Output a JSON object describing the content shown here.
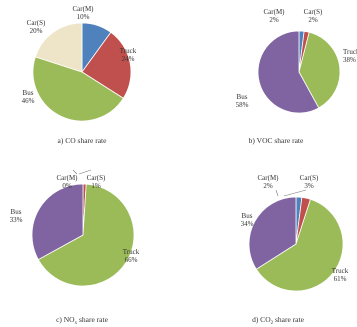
{
  "colors": {
    "Car(M)": "#4f81bd",
    "Car(S)": "#f4a033",
    "Truck": "#c0504d",
    "Bus": "#9bbb59"
  },
  "chart_data": [
    {
      "type": "pie",
      "caption": "a) CO share rate",
      "slices": [
        {
          "name": "Car(M)",
          "value": 10,
          "label": "10%",
          "color": "#4f81bd"
        },
        {
          "name": "Truck",
          "value": 24,
          "label": "24%",
          "color": "#c0504d"
        },
        {
          "name": "Bus",
          "value": 46,
          "label": "46%",
          "color": "#9bbb59"
        },
        {
          "name": "Car(S)",
          "value": 20,
          "label": "20%",
          "color": "#eee5c8"
        }
      ]
    },
    {
      "type": "pie",
      "caption": "b) VOC share rate",
      "slices": [
        {
          "name": "Car(M)",
          "value": 2,
          "label": "2%",
          "color": "#4f81bd"
        },
        {
          "name": "Car(S)",
          "value": 2,
          "label": "2%",
          "color": "#c0504d"
        },
        {
          "name": "Truck",
          "value": 38,
          "label": "38%",
          "color": "#9bbb59"
        },
        {
          "name": "Bus",
          "value": 58,
          "label": "58%",
          "color": "#8064a2"
        }
      ]
    },
    {
      "type": "pie",
      "caption_prefix": "c) NO",
      "caption_sub": "x",
      "caption_suffix": " share rate",
      "slices": [
        {
          "name": "Car(M)",
          "value": 0,
          "label": "0%",
          "color": "#4f81bd"
        },
        {
          "name": "Car(S)",
          "value": 1,
          "label": "1%",
          "color": "#c0504d"
        },
        {
          "name": "Truck",
          "value": 66,
          "label": "66%",
          "color": "#9bbb59"
        },
        {
          "name": "Bus",
          "value": 33,
          "label": "33%",
          "color": "#8064a2"
        }
      ]
    },
    {
      "type": "pie",
      "caption_prefix": "d) CO",
      "caption_sub": "2",
      "caption_suffix": " share rate",
      "slices": [
        {
          "name": "Car(M)",
          "value": 2,
          "label": "2%",
          "color": "#4f81bd"
        },
        {
          "name": "Car(S)",
          "value": 3,
          "label": "3%",
          "color": "#c0504d"
        },
        {
          "name": "Truck",
          "value": 61,
          "label": "61%",
          "color": "#9bbb59"
        },
        {
          "name": "Bus",
          "value": 34,
          "label": "34%",
          "color": "#8064a2"
        }
      ]
    }
  ]
}
